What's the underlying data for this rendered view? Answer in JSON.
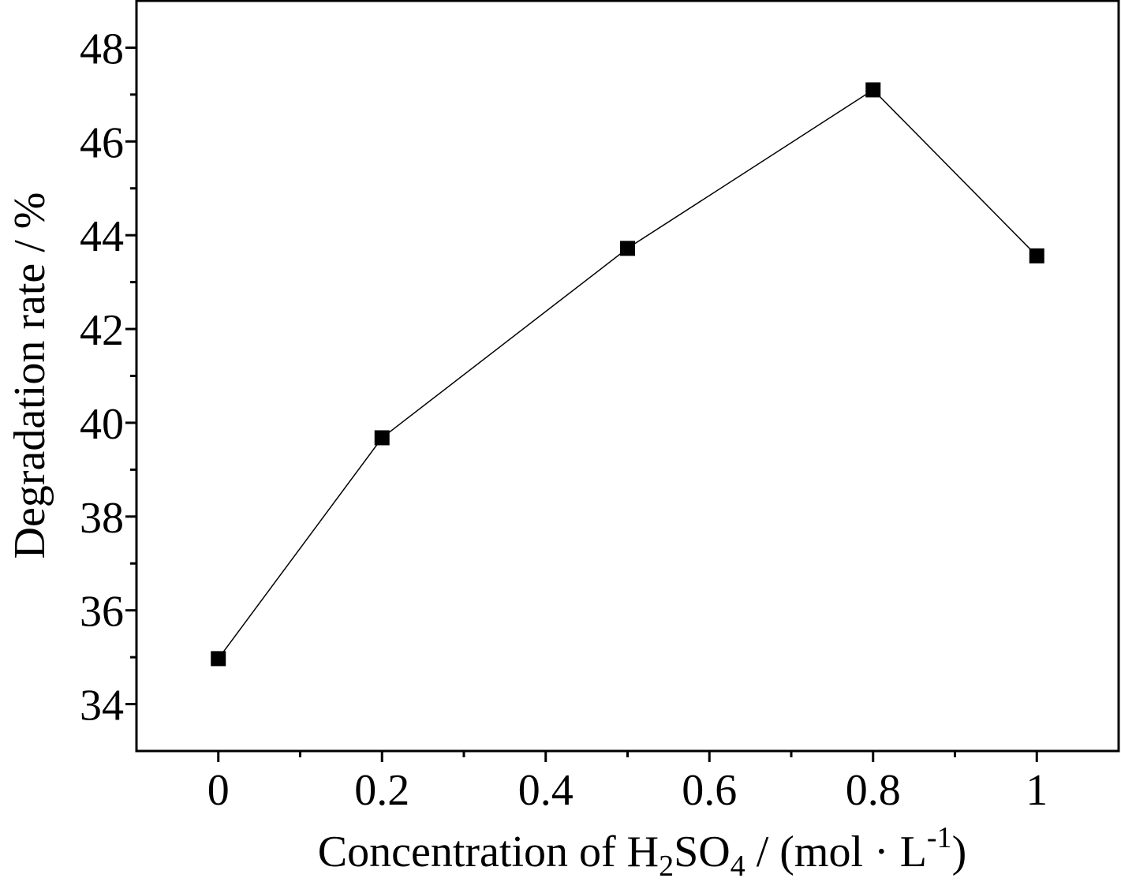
{
  "chart_data": {
    "type": "line",
    "title": "",
    "xlabel": {
      "prefix": "Concentration of H",
      "sub1": "2",
      "mid": "SO",
      "sub2": "4",
      "unit": " / (mol · L",
      "sup": "-1",
      "close": ")"
    },
    "ylabel": "Degradation rate / %",
    "xlim": [
      -0.1,
      1.1
    ],
    "ylim": [
      33,
      49
    ],
    "x_ticks": [
      0,
      0.2,
      0.4,
      0.6,
      0.8,
      1
    ],
    "x_tick_labels": [
      "0",
      "0.2",
      "0.4",
      "0.6",
      "0.8",
      "1"
    ],
    "x_minor_ticks": [
      0.1,
      0.3,
      0.5,
      0.7,
      0.9
    ],
    "y_ticks": [
      34,
      36,
      38,
      40,
      42,
      44,
      46,
      48
    ],
    "y_tick_labels": [
      "34",
      "36",
      "38",
      "40",
      "42",
      "44",
      "46",
      "48"
    ],
    "y_minor_ticks": [
      35,
      37,
      39,
      41,
      43,
      45,
      47
    ],
    "grid": false,
    "legend": "none",
    "marker": "square",
    "series": [
      {
        "x": [
          0,
          0.2,
          0.5,
          0.8,
          1
        ],
        "y": [
          34.97,
          39.68,
          43.72,
          47.1,
          43.56
        ]
      }
    ],
    "colors": {
      "line": "#000000",
      "marker": "#000000",
      "axes": "#000000"
    }
  }
}
